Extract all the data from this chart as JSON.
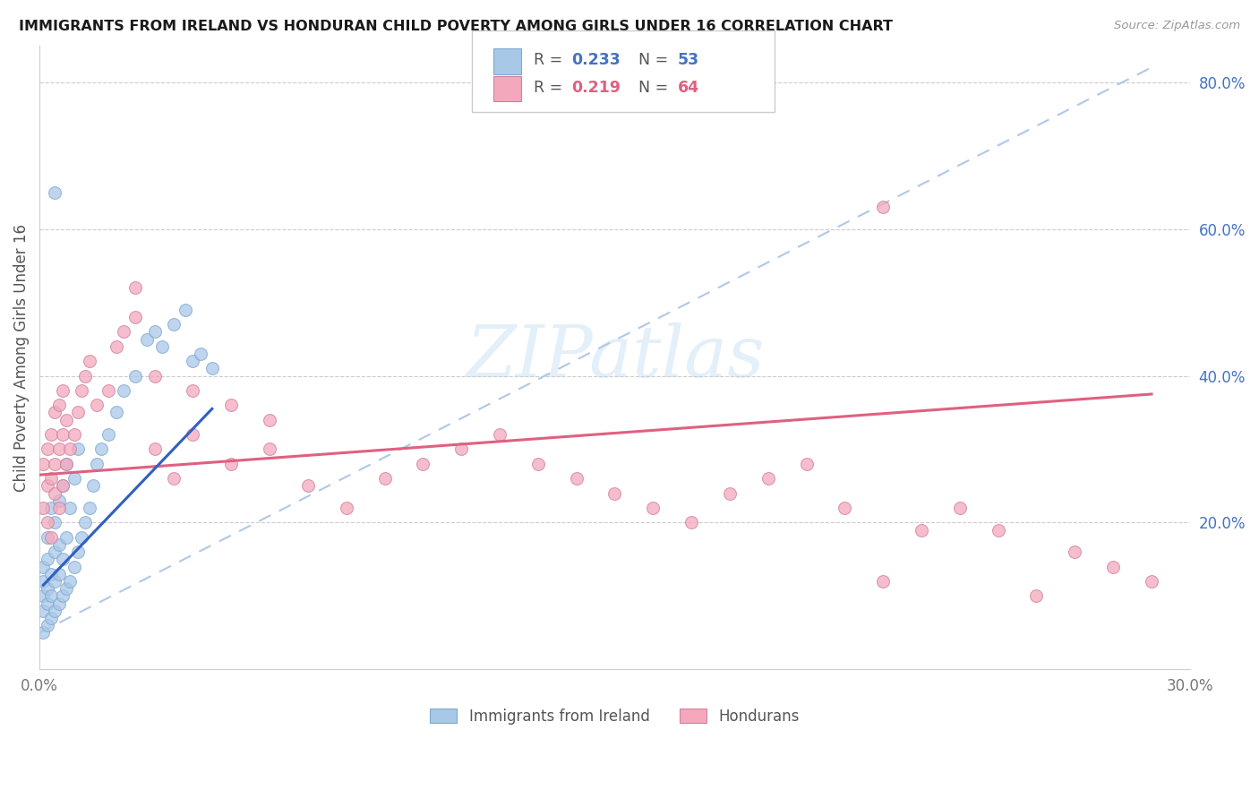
{
  "title": "IMMIGRANTS FROM IRELAND VS HONDURAN CHILD POVERTY AMONG GIRLS UNDER 16 CORRELATION CHART",
  "source": "Source: ZipAtlas.com",
  "ylabel": "Child Poverty Among Girls Under 16",
  "color_ireland": "#a8c8e8",
  "color_honduran": "#f4a8bc",
  "color_ireland_line": "#3060c0",
  "color_honduran_line": "#e06080",
  "color_dashed": "#b0c8e8",
  "xlim": [
    0.0,
    0.3
  ],
  "ylim": [
    0.0,
    0.85
  ],
  "yticks": [
    0.2,
    0.4,
    0.6,
    0.8
  ],
  "ytick_labels": [
    "20.0%",
    "40.0%",
    "60.0%",
    "80.0%"
  ],
  "xtick_labels_show": [
    "0.0%",
    "30.0%"
  ],
  "legend_r1_val": "0.233",
  "legend_n1_val": "53",
  "legend_r2_val": "0.219",
  "legend_n2_val": "64",
  "legend_text_color": "#4472c4",
  "legend_r2_color": "#e06080",
  "watermark_text": "ZIPatlas",
  "ireland_x": [
    0.001,
    0.001,
    0.001,
    0.001,
    0.001,
    0.002,
    0.002,
    0.002,
    0.002,
    0.002,
    0.003,
    0.003,
    0.003,
    0.003,
    0.004,
    0.004,
    0.004,
    0.004,
    0.005,
    0.005,
    0.005,
    0.005,
    0.006,
    0.006,
    0.006,
    0.007,
    0.007,
    0.007,
    0.008,
    0.008,
    0.009,
    0.009,
    0.01,
    0.01,
    0.011,
    0.012,
    0.013,
    0.014,
    0.015,
    0.016,
    0.018,
    0.02,
    0.022,
    0.025,
    0.028,
    0.03,
    0.032,
    0.035,
    0.038,
    0.04,
    0.042,
    0.045,
    0.004
  ],
  "ireland_y": [
    0.05,
    0.08,
    0.1,
    0.12,
    0.14,
    0.06,
    0.09,
    0.11,
    0.15,
    0.18,
    0.07,
    0.1,
    0.13,
    0.22,
    0.08,
    0.12,
    0.16,
    0.2,
    0.09,
    0.13,
    0.17,
    0.23,
    0.1,
    0.15,
    0.25,
    0.11,
    0.18,
    0.28,
    0.12,
    0.22,
    0.14,
    0.26,
    0.16,
    0.3,
    0.18,
    0.2,
    0.22,
    0.25,
    0.28,
    0.3,
    0.32,
    0.35,
    0.38,
    0.4,
    0.45,
    0.46,
    0.44,
    0.47,
    0.49,
    0.42,
    0.43,
    0.41,
    0.65
  ],
  "honduran_x": [
    0.001,
    0.001,
    0.002,
    0.002,
    0.002,
    0.003,
    0.003,
    0.003,
    0.004,
    0.004,
    0.004,
    0.005,
    0.005,
    0.005,
    0.006,
    0.006,
    0.006,
    0.007,
    0.007,
    0.008,
    0.009,
    0.01,
    0.011,
    0.012,
    0.013,
    0.015,
    0.018,
    0.02,
    0.022,
    0.025,
    0.03,
    0.035,
    0.04,
    0.05,
    0.06,
    0.07,
    0.08,
    0.09,
    0.1,
    0.11,
    0.12,
    0.13,
    0.14,
    0.15,
    0.16,
    0.17,
    0.18,
    0.19,
    0.2,
    0.21,
    0.22,
    0.23,
    0.24,
    0.25,
    0.26,
    0.27,
    0.28,
    0.29,
    0.22,
    0.025,
    0.03,
    0.04,
    0.05,
    0.06
  ],
  "honduran_y": [
    0.22,
    0.28,
    0.2,
    0.25,
    0.3,
    0.18,
    0.26,
    0.32,
    0.24,
    0.28,
    0.35,
    0.22,
    0.3,
    0.36,
    0.25,
    0.32,
    0.38,
    0.28,
    0.34,
    0.3,
    0.32,
    0.35,
    0.38,
    0.4,
    0.42,
    0.36,
    0.38,
    0.44,
    0.46,
    0.48,
    0.3,
    0.26,
    0.32,
    0.28,
    0.3,
    0.25,
    0.22,
    0.26,
    0.28,
    0.3,
    0.32,
    0.28,
    0.26,
    0.24,
    0.22,
    0.2,
    0.24,
    0.26,
    0.28,
    0.22,
    0.63,
    0.19,
    0.22,
    0.19,
    0.1,
    0.16,
    0.14,
    0.12,
    0.12,
    0.52,
    0.4,
    0.38,
    0.36,
    0.34
  ],
  "ireland_line_x": [
    0.001,
    0.045
  ],
  "ireland_line_y": [
    0.115,
    0.355
  ],
  "honduran_line_x": [
    0.0,
    0.29
  ],
  "honduran_line_y": [
    0.265,
    0.375
  ],
  "dashed_line_x": [
    0.0,
    0.29
  ],
  "dashed_line_y": [
    0.05,
    0.82
  ]
}
